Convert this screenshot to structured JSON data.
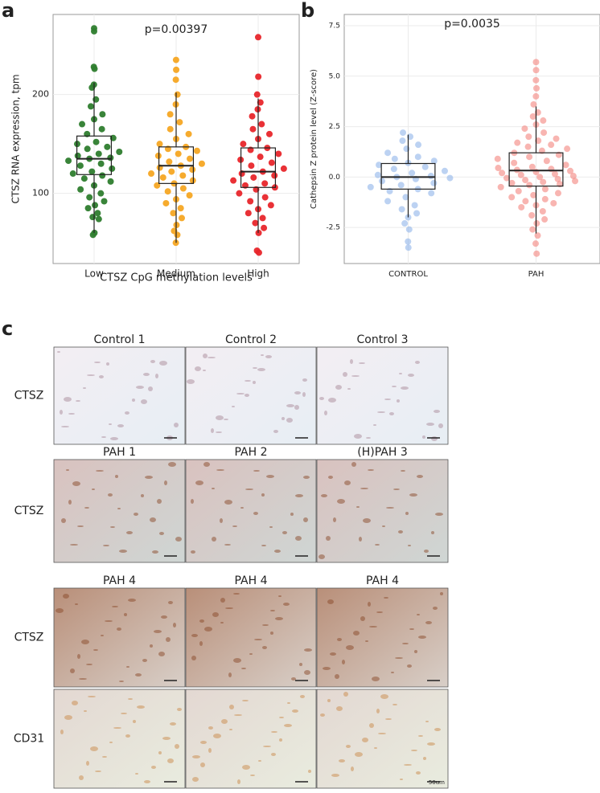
{
  "chart_data": [
    {
      "type": "box",
      "label": "a",
      "title": "p=0.00397",
      "x_label": "CTSZ CpG methylation levels",
      "y_label": "CTSZ RNA expression, tpm",
      "categories": [
        "Low",
        "Medium",
        "High"
      ],
      "groups": [
        {
          "color": "#2e7d2e",
          "whisker_low": 60,
          "q1": 119,
          "median": 135,
          "q3": 158,
          "whisker_high": 212,
          "points": [
            267,
            264,
            228,
            226,
            210,
            207,
            195,
            188,
            180,
            175,
            170,
            165,
            160,
            156,
            152,
            150,
            147,
            145,
            142,
            140,
            138,
            136,
            135,
            133,
            130,
            128,
            125,
            122,
            120,
            118,
            115,
            112,
            108,
            104,
            100,
            96,
            92,
            88,
            85,
            80,
            76,
            74,
            60,
            58
          ]
        },
        {
          "color": "#f5a623",
          "whisker_low": 50,
          "q1": 110,
          "median": 128,
          "q3": 147,
          "whisker_high": 202,
          "points": [
            235,
            225,
            215,
            200,
            190,
            180,
            172,
            165,
            160,
            155,
            150,
            147,
            145,
            143,
            140,
            138,
            135,
            132,
            130,
            128,
            126,
            124,
            122,
            120,
            118,
            116,
            113,
            110,
            108,
            105,
            102,
            98,
            94,
            90,
            85,
            80,
            75,
            68,
            62,
            58,
            50
          ]
        },
        {
          "color": "#e8262b",
          "whisker_low": 60,
          "q1": 106,
          "median": 122,
          "q3": 146,
          "whisker_high": 196,
          "points": [
            258,
            218,
            200,
            192,
            185,
            178,
            170,
            165,
            160,
            155,
            150,
            146,
            144,
            140,
            137,
            134,
            131,
            128,
            125,
            122,
            120,
            118,
            116,
            113,
            110,
            108,
            106,
            104,
            100,
            96,
            92,
            88,
            84,
            80,
            75,
            70,
            65,
            60,
            42,
            40
          ]
        }
      ],
      "ylim": [
        29,
        281
      ],
      "yticks": [
        100,
        200
      ],
      "grid": true
    },
    {
      "type": "box",
      "label": "b",
      "title": "p=0.0035",
      "y_label": "Cathepsin Z protein level (Z-score)",
      "categories": [
        "CONTROL",
        "PAH"
      ],
      "groups": [
        {
          "color": "#8fb4ea",
          "whisker_low": -2.0,
          "q1": -0.6,
          "median": 0,
          "q3": 0.67,
          "whisker_high": 2.1,
          "points": [
            2.2,
            2.0,
            1.8,
            1.6,
            1.4,
            1.2,
            1.0,
            0.9,
            0.8,
            0.7,
            0.6,
            0.5,
            0.4,
            0.3,
            0.2,
            0.1,
            0.05,
            0,
            -0.05,
            -0.1,
            -0.2,
            -0.3,
            -0.4,
            -0.5,
            -0.6,
            -0.7,
            -0.8,
            -1.0,
            -1.2,
            -1.4,
            -1.6,
            -1.8,
            -2.0,
            -2.3,
            -2.6,
            -3.2,
            -3.5
          ]
        },
        {
          "color": "#f4837d",
          "whisker_low": -2.8,
          "q1": -0.45,
          "median": 0.32,
          "q3": 1.2,
          "whisker_high": 3.5,
          "points": [
            5.7,
            5.3,
            4.8,
            4.4,
            4.0,
            3.6,
            3.2,
            3.0,
            2.8,
            2.6,
            2.4,
            2.2,
            2.0,
            1.9,
            1.8,
            1.7,
            1.6,
            1.5,
            1.4,
            1.3,
            1.2,
            1.1,
            1.0,
            0.9,
            0.8,
            0.7,
            0.6,
            0.5,
            0.45,
            0.4,
            0.35,
            0.3,
            0.25,
            0.2,
            0.15,
            0.1,
            0.05,
            0,
            -0.05,
            -0.1,
            -0.15,
            -0.2,
            -0.25,
            -0.3,
            -0.35,
            -0.4,
            -0.5,
            -0.6,
            -0.7,
            -0.8,
            -0.9,
            -1.0,
            -1.1,
            -1.2,
            -1.3,
            -1.4,
            -1.5,
            -1.7,
            -1.9,
            -2.1,
            -2.3,
            -2.6,
            -2.9,
            -3.3,
            -3.8
          ]
        }
      ],
      "ylim": [
        -4.29,
        8.06
      ],
      "yticks": [
        -2.5,
        {
          "value": 0,
          "label": "0.0"
        },
        2.5,
        {
          "value": 5,
          "label": "5.0"
        },
        7.5
      ],
      "grid": true
    }
  ],
  "panel_c": {
    "label": "c",
    "scale_text": "50um",
    "rows": [
      {
        "label": "CTSZ",
        "titles": [
          "Control 1",
          "Control 2",
          "Control 3"
        ]
      },
      {
        "label": "CTSZ",
        "titles": [
          "PAH 1",
          "PAH 2",
          "(H)PAH 3"
        ]
      },
      {
        "label": "CTSZ",
        "titles": [
          "PAH 4",
          "PAH 4",
          "PAH 4"
        ]
      },
      {
        "label": "CD31"
      }
    ]
  }
}
